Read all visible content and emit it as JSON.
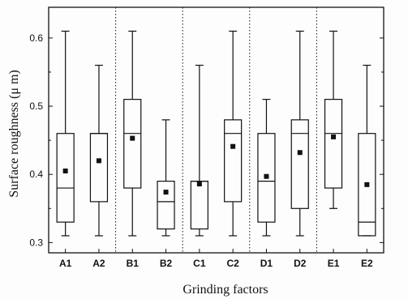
{
  "chart_data": {
    "type": "box",
    "title": "",
    "xlabel": "Grinding factors",
    "ylabel": "Surface roughness (μ m)",
    "ylim": [
      0.285,
      0.645
    ],
    "yticks": [
      0.3,
      0.4,
      0.5,
      0.6
    ],
    "ytick_labels": [
      "0.3",
      "0.4",
      "0.5",
      "0.6"
    ],
    "categories": [
      "A1",
      "A2",
      "B1",
      "B2",
      "C1",
      "C2",
      "D1",
      "D2",
      "E1",
      "E2"
    ],
    "groups": [
      {
        "factor": "A",
        "categories": [
          "A1",
          "A2"
        ]
      },
      {
        "factor": "B",
        "categories": [
          "B1",
          "B2"
        ]
      },
      {
        "factor": "C",
        "categories": [
          "C1",
          "C2"
        ]
      },
      {
        "factor": "D",
        "categories": [
          "D1",
          "D2"
        ]
      },
      {
        "factor": "E",
        "categories": [
          "E1",
          "E2"
        ]
      }
    ],
    "boxes": [
      {
        "category": "A1",
        "min": 0.31,
        "q1": 0.33,
        "median": 0.38,
        "q3": 0.46,
        "max": 0.61,
        "mean": 0.405
      },
      {
        "category": "A2",
        "min": 0.31,
        "q1": 0.36,
        "median": 0.46,
        "q3": 0.46,
        "max": 0.56,
        "mean": 0.42
      },
      {
        "category": "B1",
        "min": 0.31,
        "q1": 0.38,
        "median": 0.46,
        "q3": 0.51,
        "max": 0.61,
        "mean": 0.453
      },
      {
        "category": "B2",
        "min": 0.31,
        "q1": 0.32,
        "median": 0.36,
        "q3": 0.39,
        "max": 0.48,
        "mean": 0.374
      },
      {
        "category": "C1",
        "min": 0.31,
        "q1": 0.32,
        "median": 0.39,
        "q3": 0.39,
        "max": 0.56,
        "mean": 0.386
      },
      {
        "category": "C2",
        "min": 0.31,
        "q1": 0.36,
        "median": 0.46,
        "q3": 0.48,
        "max": 0.61,
        "mean": 0.441
      },
      {
        "category": "D1",
        "min": 0.31,
        "q1": 0.33,
        "median": 0.39,
        "q3": 0.46,
        "max": 0.51,
        "mean": 0.397
      },
      {
        "category": "D2",
        "min": 0.31,
        "q1": 0.35,
        "median": 0.46,
        "q3": 0.48,
        "max": 0.61,
        "mean": 0.432
      },
      {
        "category": "E1",
        "min": 0.35,
        "q1": 0.38,
        "median": 0.46,
        "q3": 0.51,
        "max": 0.61,
        "mean": 0.455
      },
      {
        "category": "E2",
        "min": 0.31,
        "q1": 0.31,
        "median": 0.33,
        "q3": 0.46,
        "max": 0.56,
        "mean": 0.385
      }
    ],
    "grid": false,
    "group_separators": "dotted",
    "colors": {
      "line": "#111111",
      "mean_marker": "#111111",
      "background": "#fdfdfd"
    }
  }
}
